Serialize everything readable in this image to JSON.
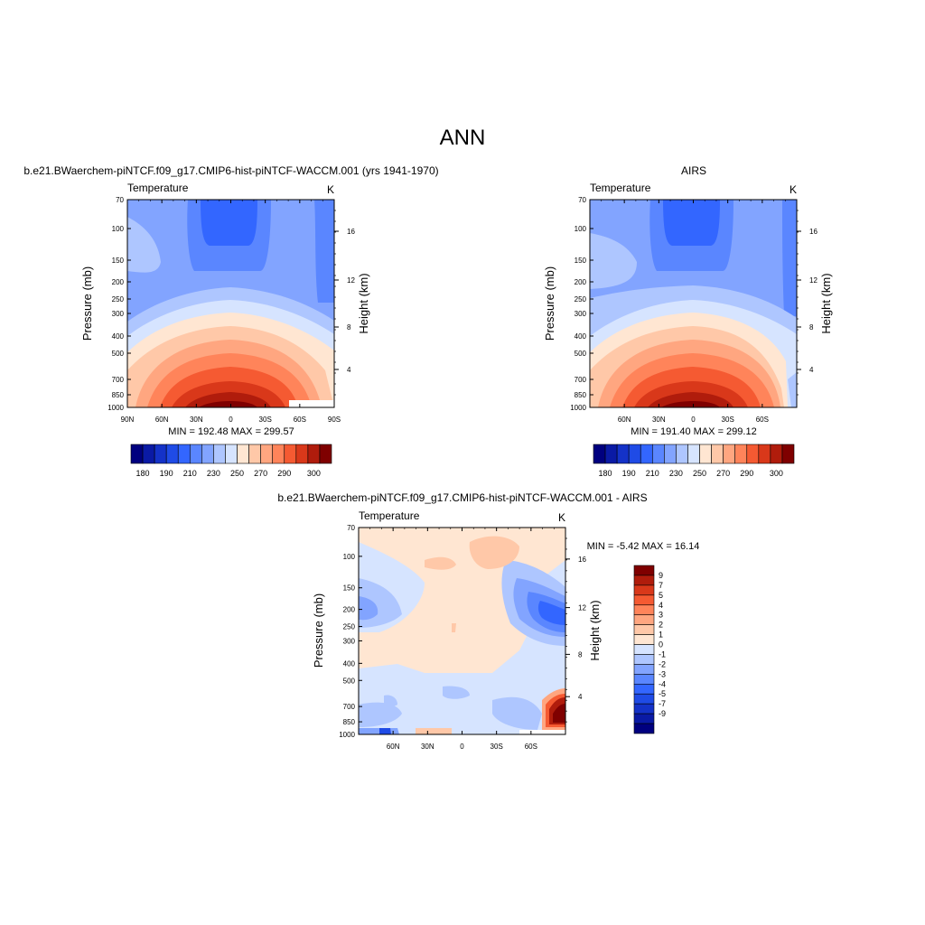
{
  "page_title": "ANN",
  "colors": {
    "warm_scale": [
      "#00007f",
      "#0a1aa5",
      "#1432c8",
      "#1f4be6",
      "#3366ff",
      "#5a86ff",
      "#82a4ff",
      "#aec6ff",
      "#d6e4ff",
      "#ffe6d2",
      "#ffc8a8",
      "#ffa680",
      "#ff845a",
      "#f55a32",
      "#d9381a",
      "#b01c0c",
      "#7f0000"
    ],
    "diff_scale": [
      "#00007f",
      "#0a1aa5",
      "#1432c8",
      "#1f4be6",
      "#3366ff",
      "#5a86ff",
      "#82a4ff",
      "#aec6ff",
      "#d6e4ff",
      "#ffe6d2",
      "#ffc8a8",
      "#ffa680",
      "#ff845a",
      "#f55a32",
      "#d9381a",
      "#b01c0c",
      "#7f0000"
    ]
  },
  "chart_data": [
    {
      "type": "heatmap",
      "title": "b.e21.BWaerchem-piNTCF.f09_g17.CMIP6-hist-piNTCF-WACCM.001 (yrs 1941-1970)",
      "left_label": "Temperature",
      "right_label": "K",
      "ylabel": "Pressure (mb)",
      "ylabel_right": "Height (km)",
      "xticks": [
        "90N",
        "60N",
        "30N",
        "0",
        "30S",
        "60S",
        "90S"
      ],
      "yticks": [
        "70",
        "100",
        "150",
        "200",
        "250",
        "300",
        "400",
        "500",
        "700",
        "850",
        "1000"
      ],
      "yticks_right": [
        "16",
        "12",
        "8",
        "4"
      ],
      "stats": "MIN = 192.48  MAX = 299.57",
      "colorbar_labels": [
        "180",
        "190",
        "210",
        "230",
        "250",
        "270",
        "290",
        "300"
      ],
      "y_axis_scale": "log pressure",
      "ylim": [
        1000,
        70
      ],
      "xlim": [
        "90N",
        "90S"
      ]
    },
    {
      "type": "heatmap",
      "title": "AIRS",
      "left_label": "Temperature",
      "right_label": "K",
      "ylabel": "Pressure (mb)",
      "ylabel_right": "Height (km)",
      "xticks": [
        "60N",
        "30N",
        "0",
        "30S",
        "60S"
      ],
      "yticks": [
        "70",
        "100",
        "150",
        "200",
        "250",
        "300",
        "400",
        "500",
        "700",
        "850",
        "1000"
      ],
      "yticks_right": [
        "16",
        "12",
        "8",
        "4"
      ],
      "stats": "MIN = 191.40  MAX = 299.12",
      "colorbar_labels": [
        "180",
        "190",
        "210",
        "230",
        "250",
        "270",
        "290",
        "300"
      ],
      "y_axis_scale": "log pressure",
      "ylim": [
        1000,
        70
      ]
    },
    {
      "type": "heatmap",
      "title": "b.e21.BWaerchem-piNTCF.f09_g17.CMIP6-hist-piNTCF-WACCM.001 - AIRS",
      "left_label": "Temperature",
      "right_label": "K",
      "ylabel": "Pressure (mb)",
      "ylabel_right": "Height (km)",
      "xticks": [
        "60N",
        "30N",
        "0",
        "30S",
        "60S"
      ],
      "yticks": [
        "70",
        "100",
        "150",
        "200",
        "250",
        "300",
        "400",
        "500",
        "700",
        "850",
        "1000"
      ],
      "yticks_right": [
        "16",
        "12",
        "8",
        "4"
      ],
      "stats": "MIN =  -5.42  MAX =  16.14",
      "colorbar_labels": [
        "9",
        "7",
        "5",
        "4",
        "3",
        "2",
        "1",
        "0",
        "-1",
        "-2",
        "-3",
        "-4",
        "-5",
        "-7",
        "-9"
      ],
      "y_axis_scale": "log pressure",
      "ylim": [
        1000,
        70
      ]
    }
  ]
}
